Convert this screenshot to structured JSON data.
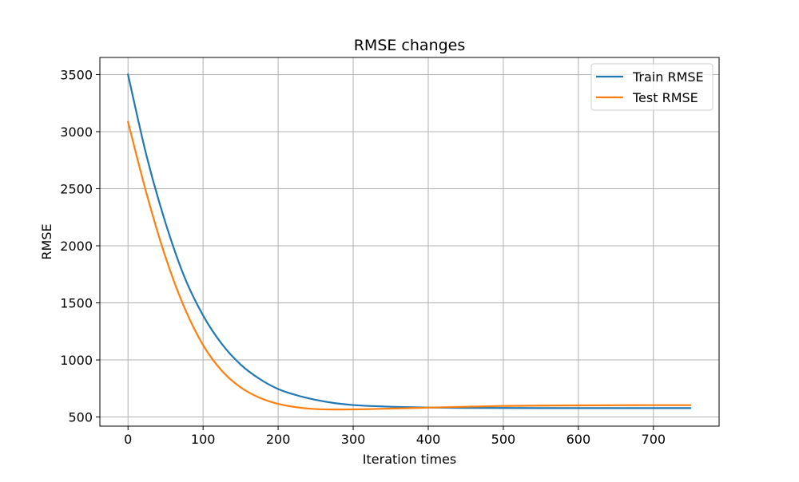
{
  "chart_data": {
    "type": "line",
    "title": "RMSE changes",
    "xlabel": "Iteration times",
    "ylabel": "RMSE",
    "xlim": [
      -37.5,
      787.5
    ],
    "ylim": [
      420,
      3650
    ],
    "xticks": [
      0,
      100,
      200,
      300,
      400,
      500,
      600,
      700
    ],
    "yticks": [
      500,
      1000,
      1500,
      2000,
      2500,
      3000,
      3500
    ],
    "grid": true,
    "legend_position": "top-right",
    "series": [
      {
        "name": "Train RMSE",
        "color": "#1f77b4",
        "x": [
          0,
          25,
          50,
          75,
          100,
          125,
          150,
          175,
          200,
          225,
          250,
          275,
          300,
          325,
          350,
          375,
          400,
          450,
          500,
          550,
          600,
          650,
          700,
          749
        ],
        "y": [
          3500,
          2780,
          2200,
          1730,
          1390,
          1140,
          960,
          835,
          745,
          690,
          650,
          622,
          605,
          596,
          590,
          586,
          583,
          580,
          579,
          578,
          578,
          578,
          578,
          578
        ]
      },
      {
        "name": "Test RMSE",
        "color": "#ff7f0e",
        "x": [
          0,
          25,
          50,
          75,
          100,
          125,
          150,
          175,
          200,
          225,
          250,
          275,
          300,
          325,
          350,
          375,
          400,
          450,
          500,
          550,
          600,
          650,
          700,
          749
        ],
        "y": [
          3085,
          2450,
          1900,
          1460,
          1130,
          905,
          760,
          670,
          615,
          585,
          570,
          566,
          567,
          570,
          574,
          578,
          582,
          590,
          597,
          600,
          602,
          603,
          604,
          604
        ]
      }
    ]
  }
}
